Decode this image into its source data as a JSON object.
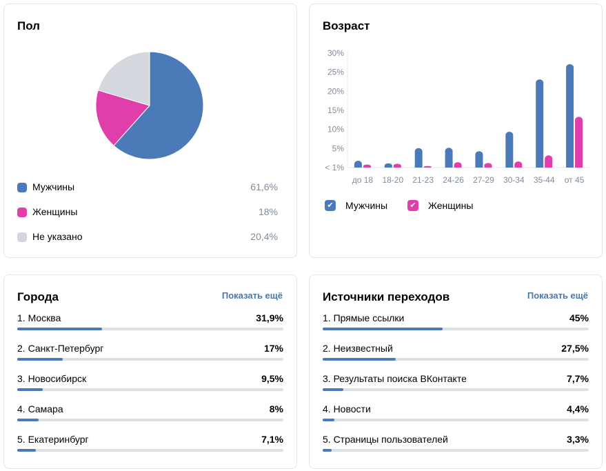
{
  "colors": {
    "male": "#4a7ab8",
    "female": "#e03fab",
    "unknown": "#d4d8de",
    "link": "#4a76a8",
    "track": "#dce1e6"
  },
  "gender": {
    "title": "Пол",
    "legend": [
      {
        "label": "Мужчины",
        "value": "61,6%"
      },
      {
        "label": "Женщины",
        "value": "18%"
      },
      {
        "label": "Не указано",
        "value": "20,4%"
      }
    ]
  },
  "age": {
    "title": "Возраст",
    "legend": [
      {
        "label": "Мужчины",
        "icon": "check-icon"
      },
      {
        "label": "Женщины",
        "icon": "check-icon"
      }
    ]
  },
  "cities": {
    "title": "Города",
    "more": "Показать ещё",
    "items": [
      {
        "label": "1. Москва",
        "value": "31,9%",
        "percent": 31.9
      },
      {
        "label": "2. Санкт-Петербург",
        "value": "17%",
        "percent": 17
      },
      {
        "label": "3. Новосибирск",
        "value": "9,5%",
        "percent": 9.5
      },
      {
        "label": "4. Самара",
        "value": "8%",
        "percent": 8
      },
      {
        "label": "5. Екатеринбург",
        "value": "7,1%",
        "percent": 7.1
      }
    ]
  },
  "sources": {
    "title": "Источники переходов",
    "more": "Показать ещё",
    "items": [
      {
        "label": "1. Прямые ссылки",
        "value": "45%",
        "percent": 45
      },
      {
        "label": "2. Неизвестный",
        "value": "27,5%",
        "percent": 27.5
      },
      {
        "label": "3. Результаты поиска ВКонтакте",
        "value": "7,7%",
        "percent": 7.7
      },
      {
        "label": "4. Новости",
        "value": "4,4%",
        "percent": 4.4
      },
      {
        "label": "5. Страницы пользователей",
        "value": "3,3%",
        "percent": 3.3
      }
    ]
  },
  "chart_data": [
    {
      "type": "pie",
      "title": "Пол",
      "categories": [
        "Мужчины",
        "Женщины",
        "Не указано"
      ],
      "values": [
        61.6,
        18,
        20.4
      ]
    },
    {
      "type": "bar",
      "title": "Возраст",
      "categories": [
        "до 18",
        "18-20",
        "21-23",
        "24-26",
        "27-29",
        "30-34",
        "35-44",
        "от 45"
      ],
      "series": [
        {
          "name": "Мужчины",
          "values": [
            1.8,
            1.1,
            5.1,
            5.2,
            4.3,
            9.4,
            23.1,
            27.1
          ]
        },
        {
          "name": "Женщины",
          "values": [
            0.8,
            1.0,
            0.4,
            1.4,
            1.2,
            1.6,
            3.2,
            13.3
          ]
        }
      ],
      "yticks": [
        "< 1%",
        "5%",
        "10%",
        "15%",
        "20%",
        "25%",
        "30%"
      ],
      "ylim": [
        0,
        30
      ],
      "grid": false,
      "legend": "bottom-left"
    }
  ]
}
